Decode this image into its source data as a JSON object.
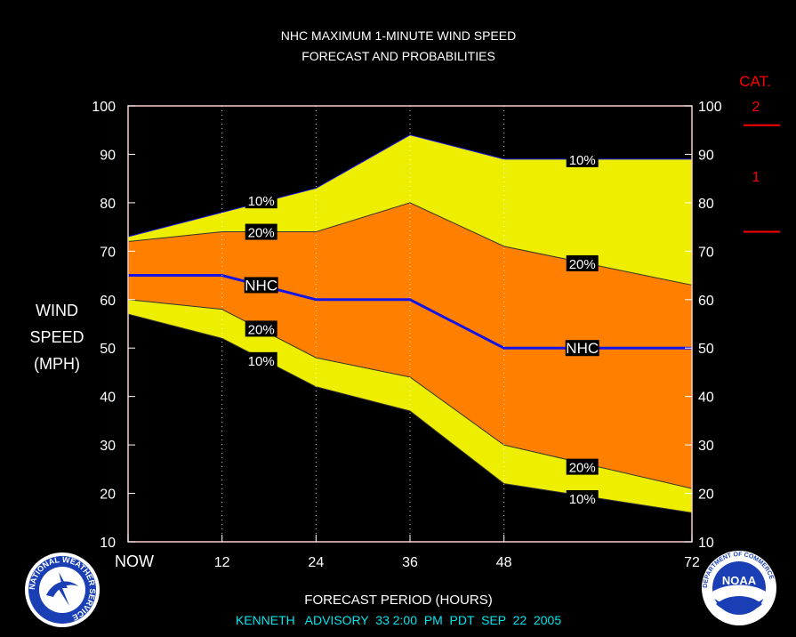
{
  "title_line1": "NHC MAXIMUM 1-MINUTE WIND SPEED",
  "title_line2": "FORECAST AND PROBABILITIES",
  "ylabel_lines": [
    "WIND",
    "SPEED",
    "(MPH)"
  ],
  "xlabel": "FORECAST PERIOD (HOURS)",
  "footer": "KENNETH   ADVISORY  33 2:00  PM  PDT  SEP  22  2005",
  "cat_header": "CAT.",
  "cat_labels": [
    {
      "label": "2",
      "y_center": 100
    },
    {
      "label": "1",
      "y_center": 85.5
    }
  ],
  "cat_thresholds": [
    96,
    74
  ],
  "colors": {
    "band_10": "#eeee00",
    "band_20": "#ff8000",
    "nhc_line": "#1414e6",
    "cat_red": "#ff0000",
    "footer": "#00e5ee",
    "grid": "#ffffff",
    "plot_border": "#ffcccc"
  },
  "chart_data": {
    "type": "area",
    "x_ticks": [
      {
        "x": 0,
        "label": "NOW"
      },
      {
        "x": 12,
        "label": "12"
      },
      {
        "x": 24,
        "label": "24"
      },
      {
        "x": 36,
        "label": "36"
      },
      {
        "x": 48,
        "label": "48"
      },
      {
        "x": 72,
        "label": "72"
      }
    ],
    "y_ticks": [
      10,
      20,
      30,
      40,
      50,
      60,
      70,
      80,
      90,
      100
    ],
    "xlim": [
      0,
      72
    ],
    "ylim": [
      10,
      100
    ],
    "grid_x": [
      12,
      24,
      36,
      48
    ],
    "series": [
      {
        "name": "10%",
        "role": "upper_10",
        "x": [
          0,
          12,
          24,
          36,
          48,
          72
        ],
        "y": [
          73,
          78,
          83,
          94,
          89,
          89
        ]
      },
      {
        "name": "20%",
        "role": "upper_20",
        "x": [
          0,
          12,
          24,
          36,
          48,
          72
        ],
        "y": [
          72,
          74,
          74,
          80,
          71,
          63
        ]
      },
      {
        "name": "NHC",
        "role": "nhc",
        "x": [
          0,
          12,
          24,
          36,
          48,
          72
        ],
        "y": [
          65,
          65,
          60,
          60,
          50,
          50
        ]
      },
      {
        "name": "20%",
        "role": "lower_20",
        "x": [
          0,
          12,
          24,
          36,
          48,
          72
        ],
        "y": [
          60,
          58,
          48,
          44,
          30,
          21
        ]
      },
      {
        "name": "10%",
        "role": "lower_10",
        "x": [
          0,
          12,
          24,
          36,
          48,
          72
        ],
        "y": [
          57,
          52,
          42,
          37,
          22,
          16
        ]
      }
    ],
    "annotations": [
      {
        "text": "10%",
        "x": 17,
        "y": 80.5
      },
      {
        "text": "20%",
        "x": 17,
        "y": 74
      },
      {
        "text": "NHC",
        "x": 17,
        "y": 63
      },
      {
        "text": "20%",
        "x": 17,
        "y": 54
      },
      {
        "text": "10%",
        "x": 17,
        "y": 47.5
      },
      {
        "text": "10%",
        "x": 58,
        "y": 89
      },
      {
        "text": "20%",
        "x": 58,
        "y": 67.5
      },
      {
        "text": "NHC",
        "x": 58,
        "y": 50
      },
      {
        "text": "20%",
        "x": 58,
        "y": 25.5
      },
      {
        "text": "10%",
        "x": 58,
        "y": 19
      }
    ],
    "logos": {
      "left_ring_text": "NATIONAL WEATHER SERVICE",
      "right_center_text": "NOAA",
      "right_ring_text": "DEPARTMENT OF COMMERCE"
    }
  }
}
